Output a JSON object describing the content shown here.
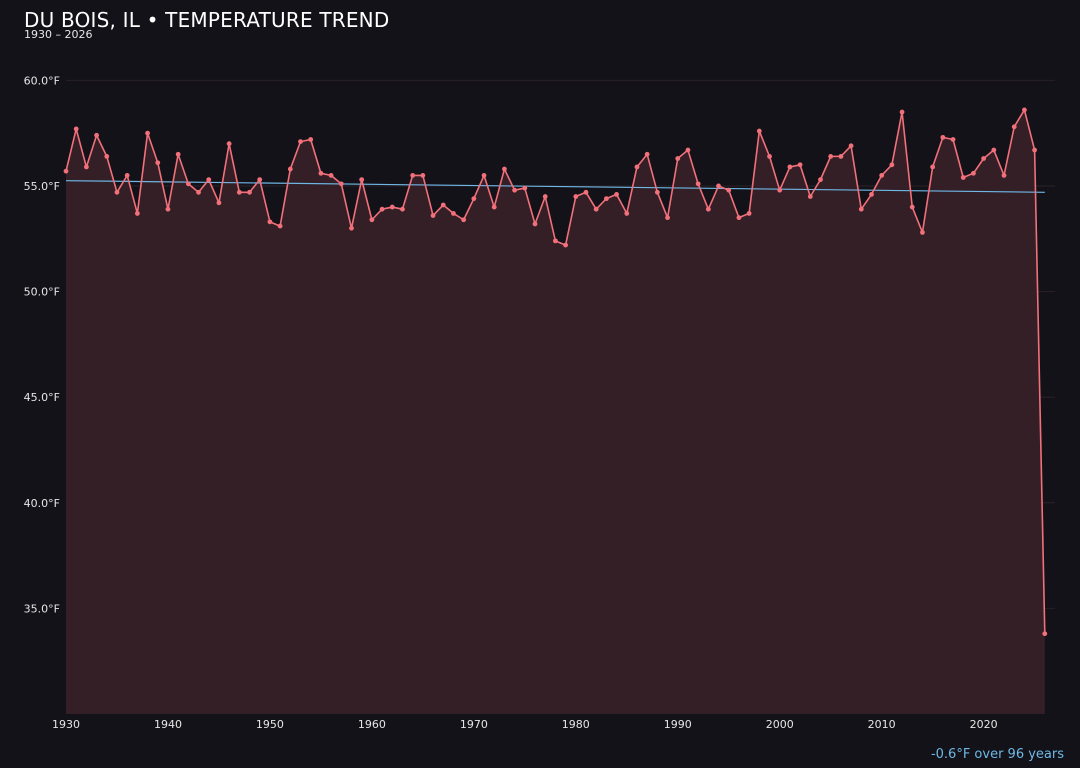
{
  "header": {
    "title": "DU BOIS, IL • TEMPERATURE TREND",
    "subtitle": "1930 – 2026"
  },
  "footer": {
    "trend_summary": "-0.6°F over 96 years"
  },
  "colors": {
    "background": "#131219",
    "series_line": "#f2707a",
    "series_fill": "#341f27",
    "trend_line": "#6fb8e6",
    "grid": "#2a2128"
  },
  "chart_data": {
    "type": "line",
    "title": "DU BOIS, IL • TEMPERATURE TREND",
    "subtitle": "1930 – 2026",
    "xlabel": "",
    "ylabel": "",
    "x_ticks": [
      1930,
      1940,
      1950,
      1960,
      1970,
      1980,
      1990,
      2000,
      2010,
      2020
    ],
    "y_ticks": [
      35.0,
      40.0,
      45.0,
      50.0,
      55.0,
      60.0
    ],
    "y_tick_labels": [
      "35.0°F",
      "40.0°F",
      "45.0°F",
      "50.0°F",
      "55.0°F",
      "60.0°F"
    ],
    "xlim": [
      1930,
      2027
    ],
    "ylim": [
      30.0,
      61.2
    ],
    "grid": true,
    "area_fill": true,
    "series": [
      {
        "x": [
          1930,
          1931,
          1932,
          1933,
          1934,
          1935,
          1936,
          1937,
          1938,
          1939,
          1940,
          1941,
          1942,
          1943,
          1944,
          1945,
          1946,
          1947,
          1948,
          1949,
          1950,
          1951,
          1952,
          1953,
          1954,
          1955,
          1956,
          1957,
          1958,
          1959,
          1960,
          1961,
          1962,
          1963,
          1964,
          1965,
          1966,
          1967,
          1968,
          1969,
          1970,
          1971,
          1972,
          1973,
          1974,
          1975,
          1976,
          1977,
          1978,
          1979,
          1980,
          1981,
          1982,
          1983,
          1984,
          1985,
          1986,
          1987,
          1988,
          1989,
          1990,
          1991,
          1992,
          1993,
          1994,
          1995,
          1996,
          1997,
          1998,
          1999,
          2000,
          2001,
          2002,
          2003,
          2004,
          2005,
          2006,
          2007,
          2008,
          2009,
          2010,
          2011,
          2012,
          2013,
          2014,
          2015,
          2016,
          2017,
          2018,
          2019,
          2020,
          2021,
          2022,
          2023,
          2024,
          2025,
          2026
        ],
        "values": [
          55.7,
          57.7,
          55.9,
          57.4,
          56.4,
          54.7,
          55.5,
          53.7,
          57.5,
          56.1,
          53.9,
          56.5,
          55.1,
          54.7,
          55.3,
          54.2,
          57.0,
          54.7,
          54.7,
          55.3,
          53.3,
          53.1,
          55.8,
          57.1,
          57.2,
          55.6,
          55.5,
          55.1,
          53.0,
          55.3,
          53.4,
          53.9,
          54.0,
          53.9,
          55.5,
          55.5,
          53.6,
          54.1,
          53.7,
          53.4,
          54.4,
          55.5,
          54.0,
          55.8,
          54.8,
          54.9,
          53.2,
          54.5,
          52.4,
          52.2,
          54.5,
          54.7,
          53.9,
          54.4,
          54.6,
          53.7,
          55.9,
          56.5,
          54.7,
          53.5,
          56.3,
          56.7,
          55.1,
          53.9,
          55.0,
          54.8,
          53.5,
          53.7,
          57.6,
          56.4,
          54.8,
          55.9,
          56.0,
          54.5,
          55.3,
          56.4,
          56.4,
          56.9,
          53.9,
          54.6,
          55.5,
          56.0,
          58.5,
          54.0,
          52.8,
          55.9,
          57.3,
          57.2,
          55.4,
          55.6,
          56.3,
          56.7,
          55.5,
          57.8,
          58.6,
          56.7,
          33.8
        ]
      }
    ],
    "trend_line": {
      "x": [
        1930,
        2026
      ],
      "y": [
        55.25,
        54.7
      ]
    },
    "annotation": "-0.6°F over 96 years"
  }
}
